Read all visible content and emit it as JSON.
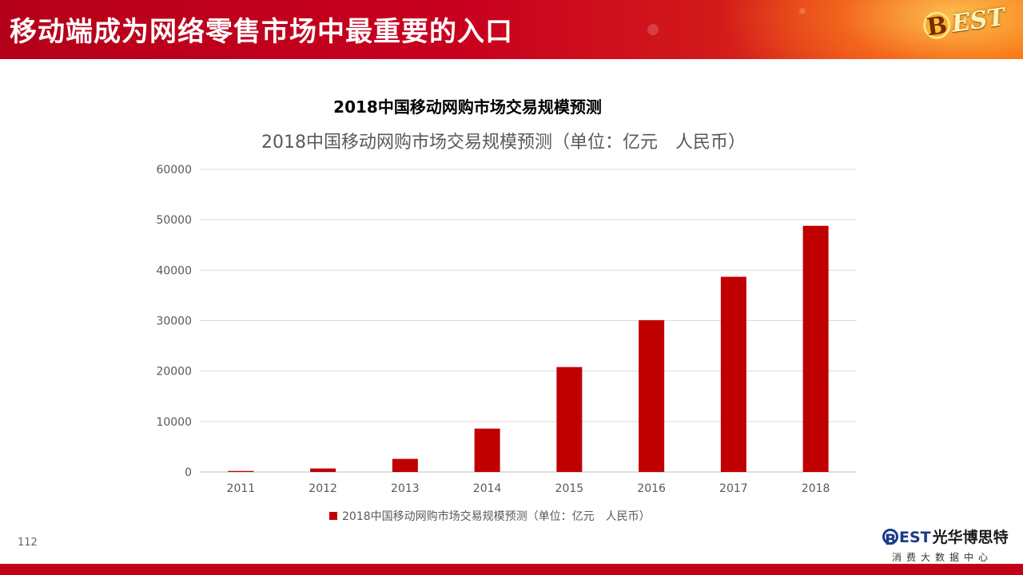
{
  "header": {
    "title": "移动端成为网络零售市场中最重要的入口",
    "logo_letter": "B",
    "logo_text": "EST"
  },
  "chart_heading": "2018中国移动网购市场交易规模预测",
  "chart_data": {
    "type": "bar",
    "title": "2018中国移动网购市场交易规模预测（单位：亿元　人民币）",
    "categories": [
      "2011",
      "2012",
      "2013",
      "2014",
      "2015",
      "2016",
      "2017",
      "2018"
    ],
    "series": [
      {
        "name": "2018中国移动网购市场交易规模预测（单位：亿元　人民币）",
        "values": [
          200,
          700,
          2600,
          8600,
          20800,
          30100,
          38700,
          48800
        ]
      }
    ],
    "ylim": [
      0,
      60000
    ],
    "yticks": [
      0,
      10000,
      20000,
      30000,
      40000,
      50000,
      60000
    ],
    "grid": true,
    "legend": "bottom",
    "bar_color": "#c00000"
  },
  "page_number": "112",
  "footer_logo": {
    "letter": "B",
    "latin": "EST",
    "chinese": "光华博思特",
    "subtitle": "消费大数据中心"
  }
}
